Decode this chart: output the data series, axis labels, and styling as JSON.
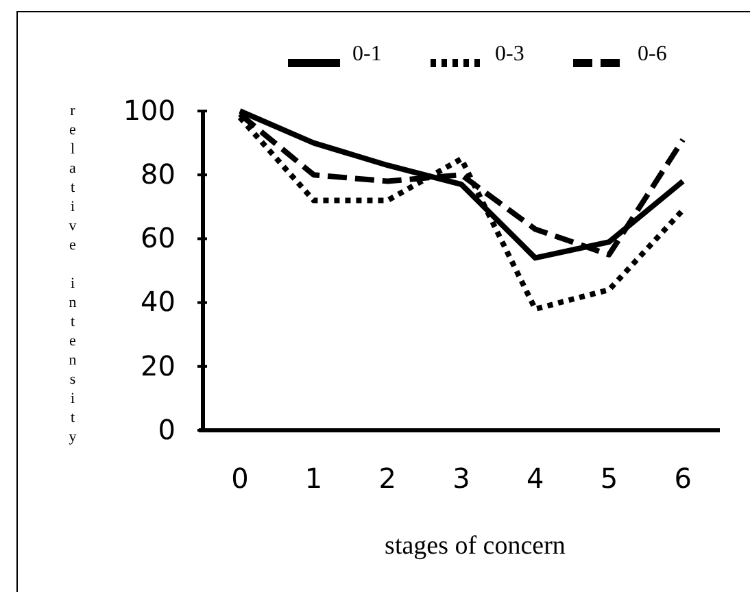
{
  "chart_data": {
    "type": "line",
    "xlabel": "stages of concern",
    "ylabel": "relative intensity",
    "categories": [
      "0",
      "1",
      "2",
      "3",
      "4",
      "5",
      "6"
    ],
    "series": [
      {
        "name": "0-1",
        "color": "#000000",
        "line_style": "solid",
        "values": [
          100,
          90,
          83,
          77,
          54,
          59,
          78
        ]
      },
      {
        "name": "0-3",
        "color": "#000000",
        "line_style": "dotted",
        "values": [
          98,
          72,
          72,
          85,
          38,
          44,
          69
        ]
      },
      {
        "name": "0-6",
        "color": "#000000",
        "line_style": "dashed",
        "values": [
          99,
          80,
          78,
          80,
          63,
          55,
          91
        ]
      }
    ],
    "ylim": [
      0,
      100
    ],
    "yticks": [
      0,
      20,
      40,
      60,
      80,
      100
    ],
    "grid": false,
    "legend": "top",
    "marker": "none"
  }
}
